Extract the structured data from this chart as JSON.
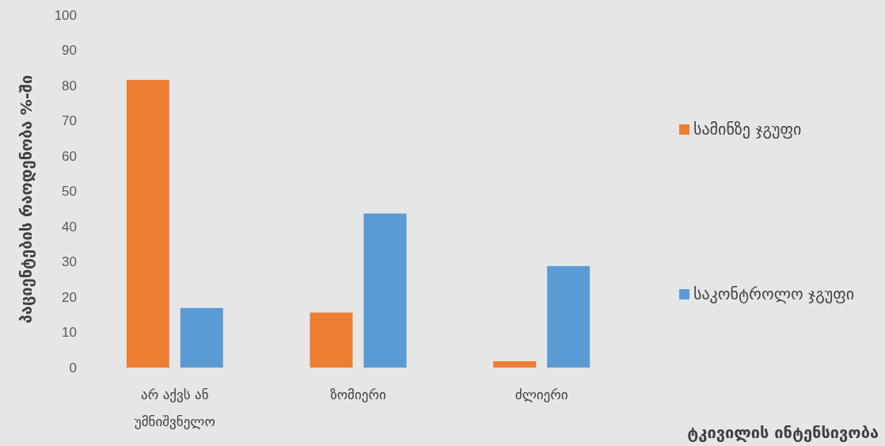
{
  "chart_data": {
    "type": "bar",
    "xlabel": "ტკივილის ინტენსივობა",
    "ylabel": "პაციენტების რაოდენობა %-ში",
    "categories": [
      "არ აქვს ან უმნიშვნელო",
      "ზომიერი",
      "ძლიერი"
    ],
    "series": [
      {
        "name": "სამინზე ჯგუფი",
        "color": "#ed7d31",
        "values": [
          81.6,
          15.6,
          1.8
        ]
      },
      {
        "name": "საკონტროლო ჯგუფი",
        "color": "#5b9bd5",
        "values": [
          16.9,
          43.7,
          28.8
        ]
      }
    ],
    "ylim": [
      0,
      100
    ],
    "yticks": [
      0,
      10,
      20,
      30,
      40,
      50,
      60,
      70,
      80,
      90,
      100
    ],
    "legend": "right"
  }
}
